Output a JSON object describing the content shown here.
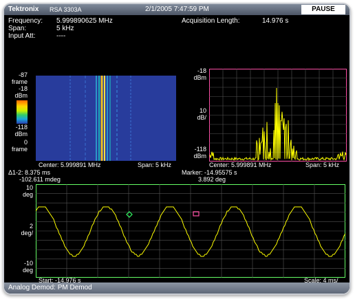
{
  "window": {
    "brand": "Tektronix",
    "model": "RSA 3303A",
    "datetime": "2/1/2005 7:47:59 PM",
    "pause_label": "PAUSE"
  },
  "settings": {
    "frequency_label": "Frequency:",
    "frequency_value": "5.999890625 MHz",
    "span_label": "Span:",
    "span_value": "5 kHz",
    "input_att_label": "Input Att:",
    "input_att_value": "----",
    "acq_label": "Acquisition Length:",
    "acq_value": "14.976 s"
  },
  "spectrogram": {
    "top_value": "-87",
    "top_unit": "frame",
    "ref_level": "-18",
    "ref_unit": "dBm",
    "bottom_level": "-118",
    "bottom_unit": "dBm",
    "bottom_value": "0",
    "bottom_frame_unit": "frame",
    "center": "Center: 5.999891 MHz",
    "span": "Span: 5 kHz"
  },
  "spectrum": {
    "ref_level": "-18",
    "ref_unit": "dBm",
    "scale_value": "10",
    "scale_unit": "dB/",
    "bottom_level": "-118",
    "bottom_unit": "dBm",
    "center": "Center: 5.999891 MHz",
    "span": "Span: 5 kHz"
  },
  "phase_plot": {
    "delta_time": "Δ1-2: 8.375 ms",
    "delta_phase": "-102.611 mdeg",
    "marker_time": "Marker: -14.95575 s",
    "marker_phase": "3.892 deg",
    "top_value": "10",
    "top_unit": "deg",
    "scale_value": "2",
    "scale_unit": "deg/",
    "bottom_value": "-10",
    "bottom_unit": "deg",
    "start": "Start: -14.976 s",
    "scale": "Scale: 4 ms/"
  },
  "status": {
    "mode": "Analog Demod: PM Demod"
  },
  "colors": {
    "trace": "#ffff00",
    "spectrum_border": "#ff4fa7",
    "phase_border": "#66ff66",
    "spectrogram_bg": "#2a3f9e"
  }
}
